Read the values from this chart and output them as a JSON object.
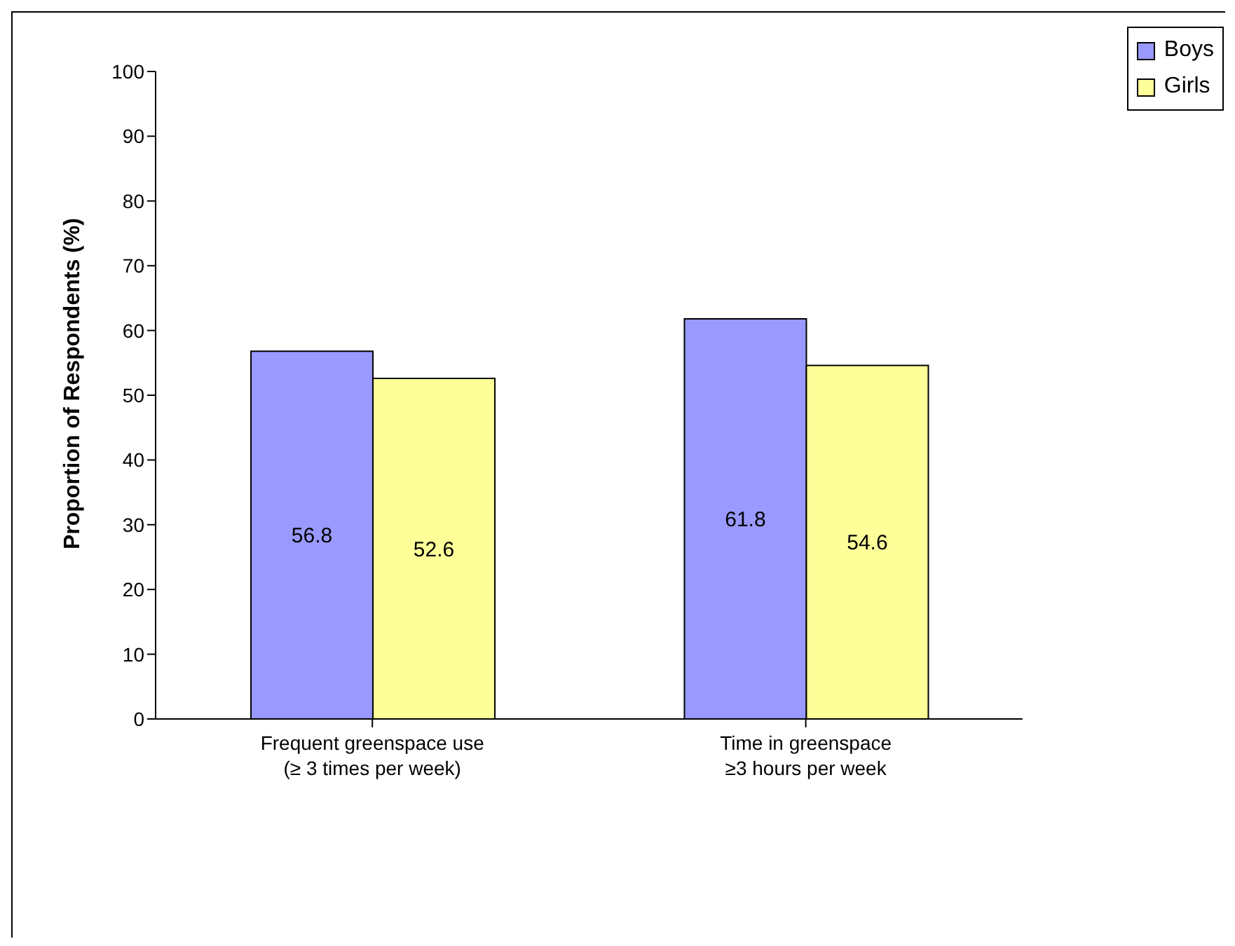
{
  "chart_data": {
    "type": "bar",
    "ylabel": "Proportion of Respondents (%)",
    "categories": [
      "Frequent greenspace use\n(≥ 3 times per week)",
      "Time in greenspace\n≥3 hours per week"
    ],
    "series": [
      {
        "name": "Boys",
        "color": "#9999ff",
        "values": [
          56.8,
          61.8
        ]
      },
      {
        "name": "Girls",
        "color": "#ffff99",
        "values": [
          52.6,
          54.6
        ]
      }
    ],
    "ylim": [
      0,
      100
    ],
    "yticks": [
      0,
      10,
      20,
      30,
      40,
      50,
      60,
      70,
      80,
      90,
      100
    ],
    "grid": false,
    "legend": "top right",
    "data_labels": true
  }
}
